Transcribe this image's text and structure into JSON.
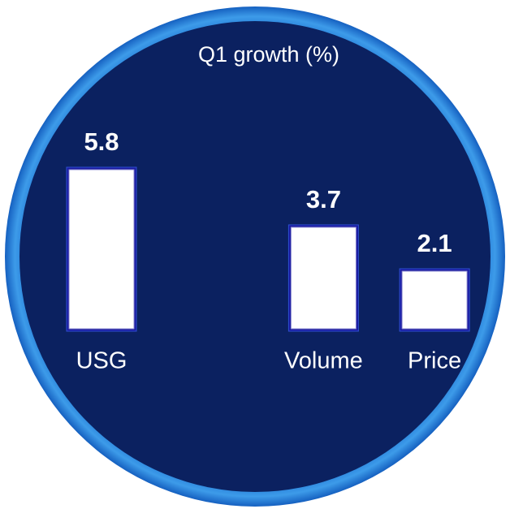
{
  "chart_data": {
    "type": "bar",
    "title": "Q1 growth (%)",
    "categories": [
      "USG",
      null,
      "Volume",
      "Price"
    ],
    "values": [
      5.8,
      null,
      3.7,
      2.1
    ],
    "color": "#ffffff"
  }
}
